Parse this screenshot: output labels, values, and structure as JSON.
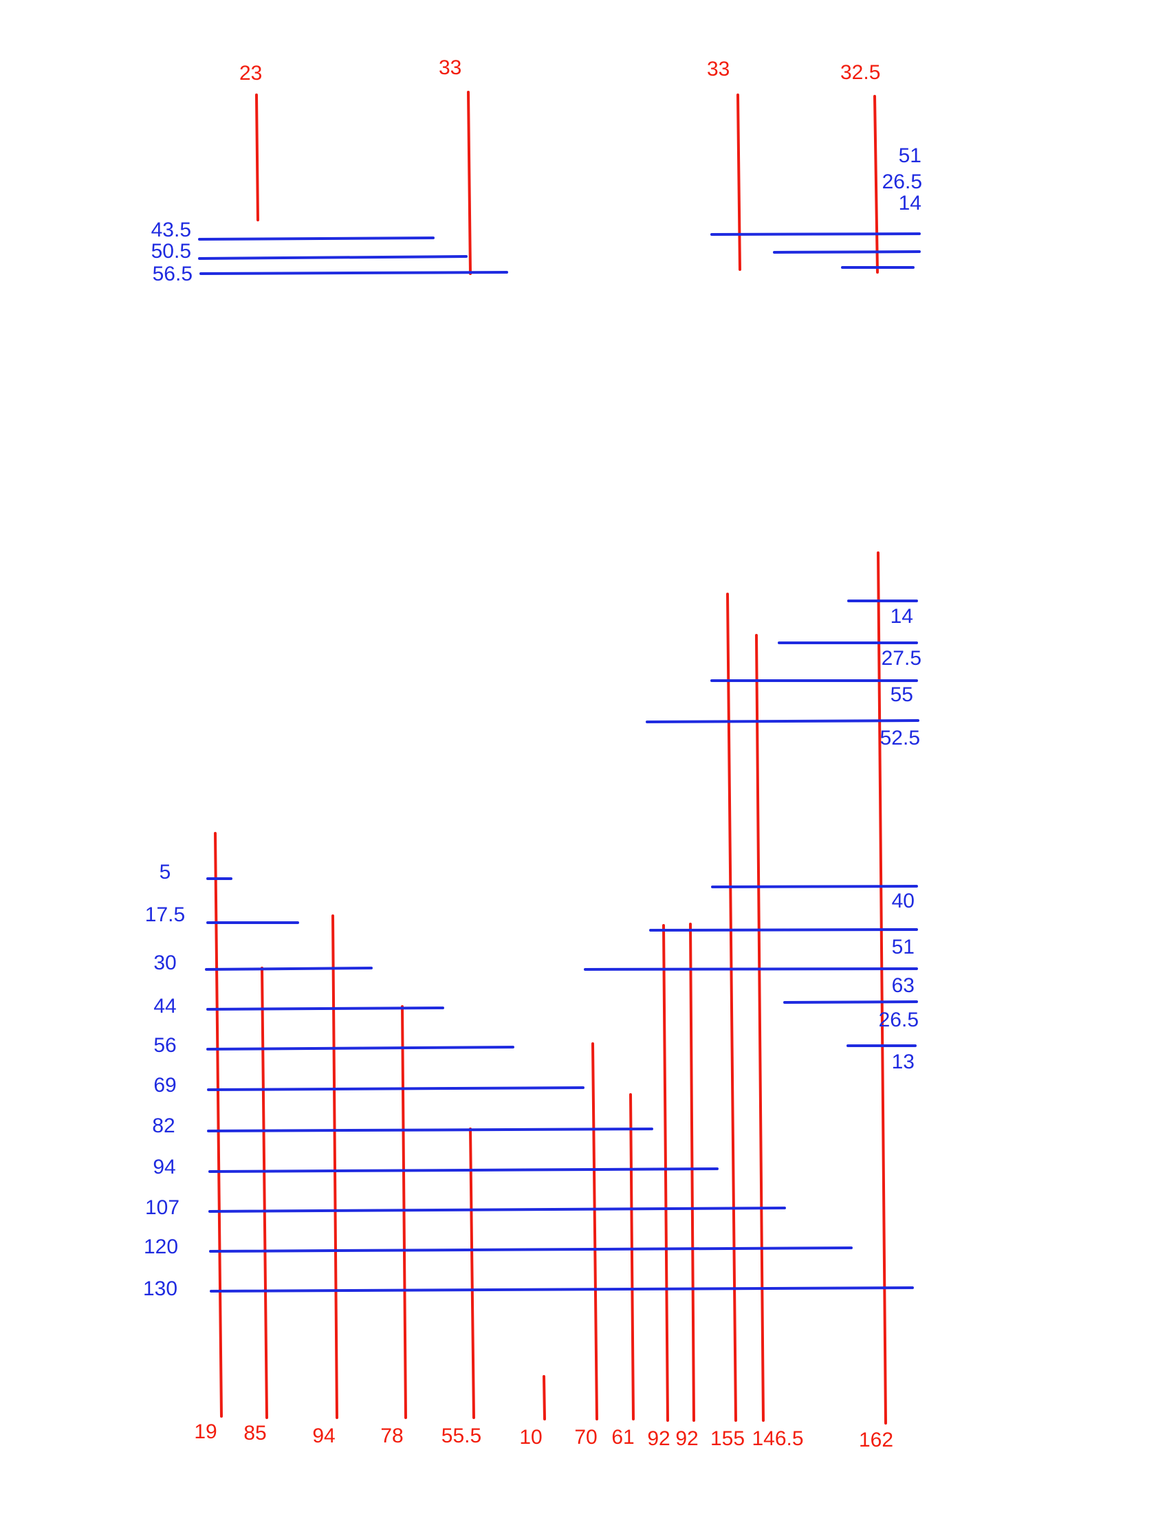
{
  "top_left": {
    "vertical_labels": [
      "23",
      "33"
    ],
    "horizontal_labels": [
      "43.5",
      "50.5",
      "56.5"
    ]
  },
  "top_right": {
    "vertical_labels": [
      "33",
      "32.5"
    ],
    "horizontal_labels": [
      "51",
      "26.5",
      "14"
    ]
  },
  "bottom": {
    "vertical_labels": [
      "19",
      "85",
      "94",
      "78",
      "55.5",
      "10",
      "70",
      "61",
      "92",
      "92",
      "155",
      "146.5",
      "162"
    ],
    "left_horizontal_labels": [
      "5",
      "17.5",
      "30",
      "44",
      "56",
      "69",
      "82",
      "94",
      "107",
      "120",
      "130"
    ],
    "right_horizontal_labels_upper": [
      "14",
      "27.5",
      "55",
      "52.5"
    ],
    "right_horizontal_labels_lower": [
      "40",
      "51",
      "63",
      "26.5",
      "13"
    ]
  },
  "colors": {
    "vertical": "#ee1c12",
    "horizontal": "#1f2be0"
  }
}
